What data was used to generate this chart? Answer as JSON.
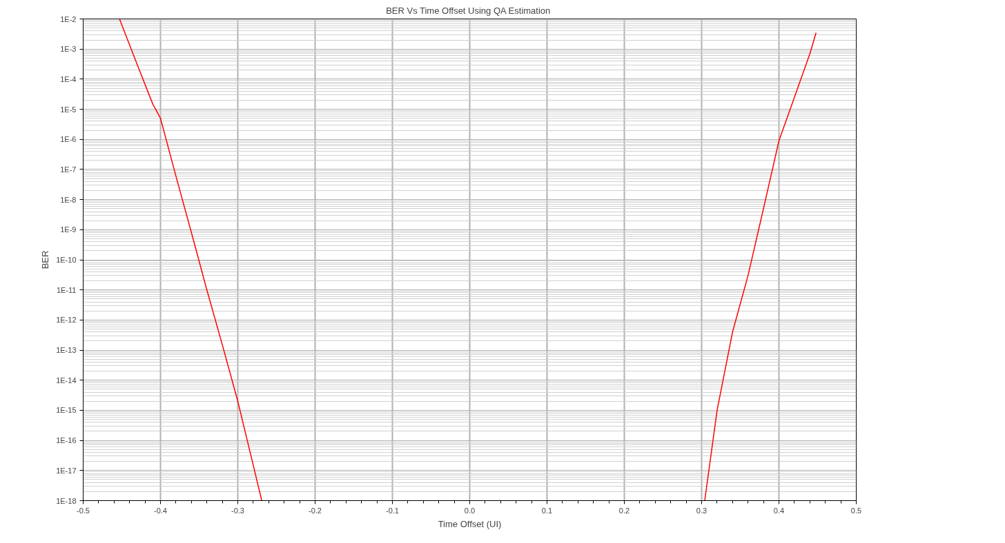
{
  "chart_data": {
    "type": "line",
    "title": "BER Vs Time Offset  Using QA Estimation",
    "xlabel": "Time Offset (UI)",
    "ylabel": "BER",
    "log": "y",
    "grid": true,
    "xlim": [
      -0.5,
      0.5
    ],
    "xticks": [
      -0.5,
      -0.4,
      -0.3,
      -0.2,
      -0.1,
      {
        "value": 0,
        "label": "0.0"
      },
      0.1,
      0.2,
      0.3,
      0.4,
      0.5
    ],
    "ylim": [
      1e-18,
      0.01
    ],
    "yticks": [
      {
        "value": 1e-18,
        "label": "1E-18"
      },
      {
        "value": 1e-17,
        "label": "1E-17"
      },
      {
        "value": 1e-16,
        "label": "1E-16"
      },
      {
        "value": 1e-15,
        "label": "1E-15"
      },
      {
        "value": 1e-14,
        "label": "1E-14"
      },
      {
        "value": 1e-13,
        "label": "1E-13"
      },
      {
        "value": 1e-12,
        "label": "1E-12"
      },
      {
        "value": 1e-11,
        "label": "1E-11"
      },
      {
        "value": 1e-10,
        "label": "1E-10"
      },
      {
        "value": 1e-09,
        "label": "1E-9"
      },
      {
        "value": 1e-08,
        "label": "1E-8"
      },
      {
        "value": 1e-07,
        "label": "1E-7"
      },
      {
        "value": 1e-06,
        "label": "1E-6"
      },
      {
        "value": 1e-05,
        "label": "1E-5"
      },
      {
        "value": 0.0001,
        "label": "1E-4"
      },
      {
        "value": 0.001,
        "label": "1E-3"
      },
      {
        "value": 0.01,
        "label": "1E-2"
      }
    ],
    "marker": "none",
    "line_style": "solid",
    "series": [
      {
        "color": "#ff0000",
        "x": [
          -0.453,
          -0.43,
          -0.41,
          -0.4,
          -0.38,
          -0.36,
          -0.34,
          -0.32,
          -0.3,
          -0.28,
          -0.269
        ],
        "values": [
          0.01,
          0.0003,
          1.5e-05,
          5e-06,
          6e-08,
          8e-10,
          1e-11,
          1.5e-13,
          2e-15,
          1.5e-17,
          1e-18
        ]
      },
      {
        "color": "#ff0000",
        "x": [
          0.304,
          0.32,
          0.34,
          0.36,
          0.38,
          0.4,
          0.42,
          0.44,
          0.448
        ],
        "values": [
          1e-18,
          1e-15,
          4e-13,
          3e-11,
          5e-09,
          9e-07,
          2.5e-05,
          0.0007,
          0.0035
        ]
      }
    ]
  }
}
